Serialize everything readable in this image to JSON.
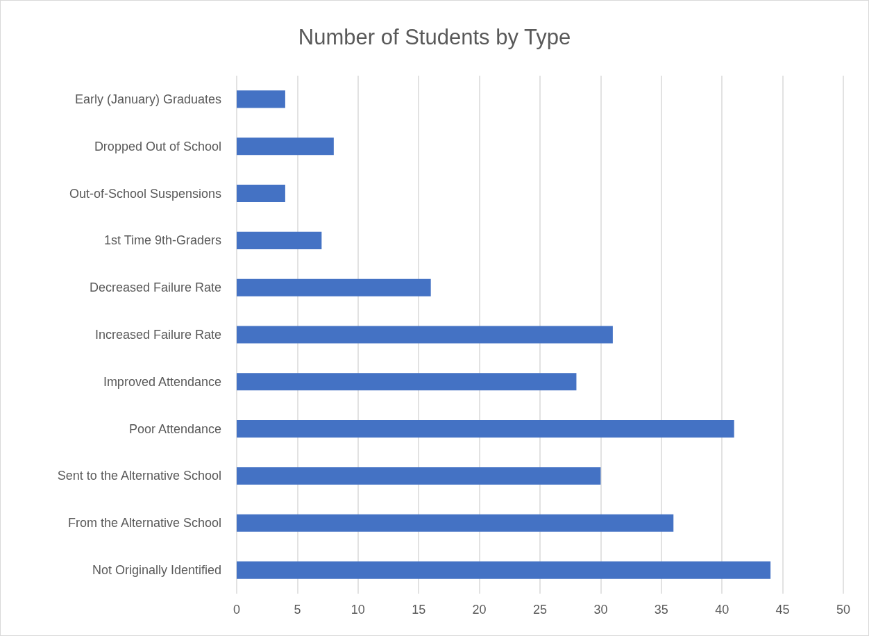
{
  "chart_data": {
    "type": "bar",
    "orientation": "horizontal",
    "title": "Number of Students by Type",
    "categories": [
      "Early (January) Graduates",
      "Dropped Out of School",
      "Out-of-School Suspensions",
      "1st Time 9th-Graders",
      "Decreased Failure Rate",
      "Increased Failure Rate",
      "Improved Attendance",
      "Poor Attendance",
      "Sent to the Alternative School",
      "From the Alternative School",
      "Not Originally Identified"
    ],
    "values": [
      4,
      8,
      4,
      7,
      16,
      31,
      28,
      41,
      30,
      36,
      44
    ],
    "color": "#4472c4",
    "xlim": [
      0,
      50
    ],
    "xticks": [
      0,
      5,
      10,
      15,
      20,
      25,
      30,
      35,
      40,
      45,
      50
    ],
    "grid": "x"
  }
}
